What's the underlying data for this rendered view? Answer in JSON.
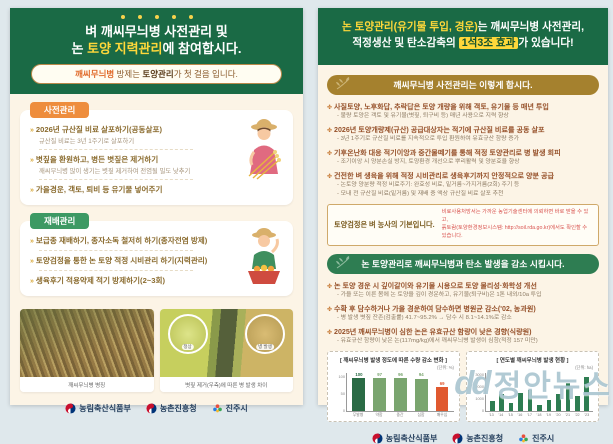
{
  "watermark": {
    "logo": "dd",
    "text": "정안뉴스"
  },
  "footer": {
    "logos": [
      {
        "name": "농림축산식품부"
      },
      {
        "name": "농촌진흥청"
      },
      {
        "name": "진주시"
      }
    ]
  },
  "left": {
    "header": {
      "line1": "벼 깨씨무늬병 사전관리 및",
      "line2_pre": "논 ",
      "line2_hl": "토양 지력관리",
      "line2_post": "에 참여합시다.",
      "pill_hl": "깨씨무늬병",
      "pill_mid": " 방제는 ",
      "pill_bold": "토양관리",
      "pill_post": "가 첫 걸음 입니다."
    },
    "card1": {
      "tab": "사전관리",
      "items": [
        {
          "title": "2026년 규산질 비료 살포하기(공동살포)",
          "sub": "규산질 비료는 3년 1주기로 살포하기"
        },
        {
          "title": "볏짚을 환원하고, 병든 볏짚은 제거하기",
          "sub": "깨씨무늬병 많이 생기는 볏짚 제거하여 전염될 밀도 낮추기"
        },
        {
          "title": "가을경운, 객토, 퇴비 등 유기물 넣어주기",
          "sub": ""
        }
      ]
    },
    "card2": {
      "tab": "재배관리",
      "items": [
        {
          "title": "보급종 재배하기, 종자소독 철저히 하기(종자전염 방제)"
        },
        {
          "title": "토양검정을 통한 논 토양 적정 시비관리 하기(지력관리)"
        },
        {
          "title": "생육후기 적용약제 적기 방제하기(2~3회)"
        }
      ]
    },
    "photos": [
      {
        "caption": "깨씨무늬병 병징"
      },
      {
        "caption": "볏짚 제거(우측)에 따른 병 발생 차이",
        "inset_left": "정상",
        "inset_right": "병 발생"
      }
    ]
  },
  "right": {
    "header": {
      "line1_hl": "논 토양관리(유기물 투입, 경운)",
      "line1_post": "는 깨씨무늬병 사전관리,",
      "line2_pre": "적정생산 및 탄소감축의 ",
      "line2_badge": "1석3조 효과",
      "line2_post": "가 있습니다!"
    },
    "section1": {
      "bar": "깨씨무늬병 사전관리는 이렇게 합시다.",
      "items": [
        {
          "title": "사질토양, 노후화답, 추락답은 토양 개량을 위해 객토, 유기물 등 매년 투입",
          "subs": [
            "- 불량 토양은 객토 및 유기물(볏짚, 퇴구비 등) 매년 사용으로 지력 향상"
          ]
        },
        {
          "title": "2026년 토양개량제(규산) 공급대상자는 적기에 규산질 비료를 공동 살포",
          "subs": [
            "- 3년 1주기로 규산질 비료를 지속적으로 투입 환원하여 유효규산 함량 증가"
          ]
        },
        {
          "title": "기후온난화 대응 적기이앙과 중간물떼기를 통해 적정 토양관리로 병 발생 회피",
          "subs": [
            "- 조기이앙 시 양분손실 방지, 토양환경 개선으로 뿌리활력 및 양분효율 향상"
          ]
        },
        {
          "title": "건전한 벼 생육을 위해 적정 시비관리로 생육후기까지 안정적으로 양분 공급",
          "subs": [
            "- 논토양 양분량 적정 비료주기: 완효성 비료, 밑거름~가지거름(2회) 주기 등",
            "- 모내 전 규산질 비료(밑거름) 및 재배 중 액상 규산질 비료 살포 추천"
          ]
        }
      ]
    },
    "notice": {
      "left": "토양검정은 벼 농사의 기본입니다.",
      "right1": "비료사용처방서는 가까운 농업기술센터에 의뢰하면 바로 받을 수 있고,",
      "right2": "흙토람(토양환경정보시스템: http://soil.rda.go.kr)에서도 확인할 수 있습니다."
    },
    "section2": {
      "bar": "논 토양관리로 깨씨무늬병과 탄소 발생을 감소 시킵시다.",
      "items": [
        {
          "title": "논 토양 경운 시 깊이갈이와 유기물 시용으로 토양 물리성·화학성 개선",
          "subs": [
            "- 가을 또는 이른 봄에 논 토양을 깊이 경운하고, 유기물(퇴구비)은 1톤 내외/10a 투입"
          ]
        },
        {
          "title": "수확 후 담수하거나 가을 경운하여 담수하면 병원균 감소('02, 농과원)",
          "subs": [
            "- 병 발생 볏짚 잔존(검출률) 41.7~95.2% → 담수 시 8.1~14.1%로 감소"
          ]
        },
        {
          "title": "2025년 깨씨무늬병이 심한 논은 유효규산 함량이 낮은 경향(식량원)",
          "subs": [
            "- 유효규산 함량이 낮은 논(117mg/kg)에서 깨씨무늬병 발생이 심함(적정 157 미만)"
          ]
        }
      ]
    }
  },
  "chart_data": [
    {
      "type": "bar",
      "title": "[ 깨씨무늬병 발생 정도에 따른 수량 감소 변화 ]",
      "unit": "(단위: %)",
      "categories": [
        "무발병",
        "약함",
        "중간",
        "심함",
        "매우심"
      ],
      "values": [
        100,
        97,
        96,
        94,
        69
      ],
      "colors": [
        "#2a6b45",
        "#7aa56f",
        "#7aa56f",
        "#7aa56f",
        "#e0592f"
      ],
      "show_values": true,
      "yticks": [
        0,
        50,
        100
      ],
      "ylim": [
        0,
        112
      ],
      "xlabel": "",
      "ylabel": "",
      "legend": "none",
      "grid": false
    },
    {
      "type": "bar",
      "title": "[ 연도별 깨씨무늬병 발생 현황 ]",
      "unit": "(단위: ha)",
      "categories": [
        "'13",
        "'14",
        "'15",
        "'16",
        "'17",
        "'18",
        "'19",
        "'20",
        "'21",
        "'22",
        "'23"
      ],
      "values": [
        800,
        1400,
        600,
        1500,
        1700,
        450,
        900,
        1400,
        2300,
        1200,
        2800
      ],
      "colors": "#2e7d52",
      "show_values": false,
      "yticks": [
        0,
        1000,
        2000,
        3000
      ],
      "ylim": [
        0,
        3200
      ],
      "xlabel": "",
      "ylabel": "",
      "legend": "none",
      "grid": false
    }
  ]
}
